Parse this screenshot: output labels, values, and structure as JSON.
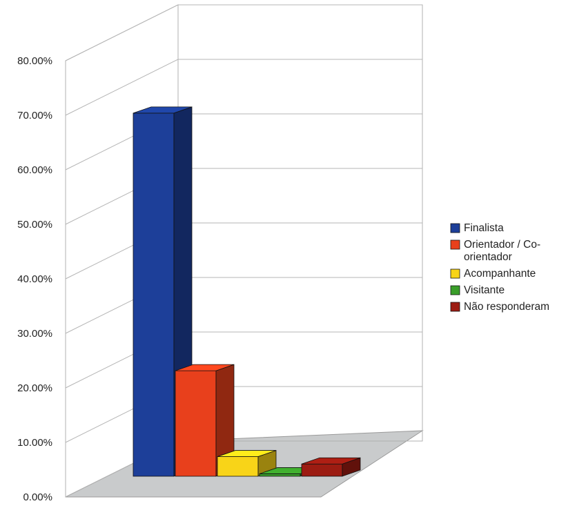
{
  "chart_data": {
    "type": "bar",
    "style": "3d",
    "title": "",
    "xlabel": "",
    "ylabel": "",
    "ylim": [
      0,
      80
    ],
    "y_ticks": [
      "0.00%",
      "10.00%",
      "20.00%",
      "30.00%",
      "40.00%",
      "50.00%",
      "60.00%",
      "70.00%",
      "80.00%"
    ],
    "grid": true,
    "legend_position": "right",
    "series": [
      {
        "name": "Finalista",
        "value": 74.0,
        "color": "#1d3f99"
      },
      {
        "name": "Orientador / Co-orientador",
        "value": 21.5,
        "color": "#e8401c"
      },
      {
        "name": "Acompanhante",
        "value": 4.0,
        "color": "#f8d418"
      },
      {
        "name": "Visitante",
        "value": 0.5,
        "color": "#3a9e2a"
      },
      {
        "name": "Não responderam",
        "value": 2.5,
        "color": "#9c1c12"
      }
    ],
    "legend_lines": [
      [
        "Finalista"
      ],
      [
        "Orientador / Co-",
        "orientador"
      ],
      [
        "Acompanhante"
      ],
      [
        "Visitante"
      ],
      [
        "Não responderam"
      ]
    ]
  }
}
